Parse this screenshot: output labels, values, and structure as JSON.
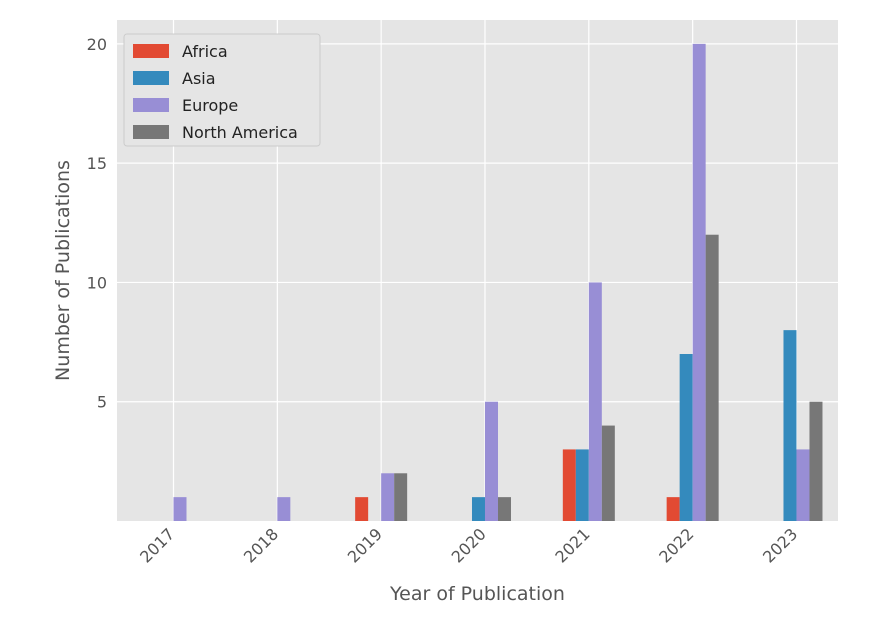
{
  "chart_data": {
    "type": "bar",
    "xlabel": "Year of Publication",
    "ylabel": "Number of Publications",
    "categories": [
      "2017",
      "2018",
      "2019",
      "2020",
      "2021",
      "2022",
      "2023"
    ],
    "yticks": [
      5,
      10,
      15,
      20
    ],
    "ylim": [
      0,
      21.0
    ],
    "grid": true,
    "legend_position": "top-left",
    "series": [
      {
        "name": "Africa",
        "color": "#E24A33",
        "values": [
          0,
          0,
          1,
          0,
          3,
          1,
          0
        ]
      },
      {
        "name": "Asia",
        "color": "#348ABD",
        "values": [
          0,
          0,
          0,
          1,
          3,
          7,
          8
        ]
      },
      {
        "name": "Europe",
        "color": "#988ED5",
        "values": [
          1,
          1,
          2,
          5,
          10,
          20,
          3
        ]
      },
      {
        "name": "North America",
        "color": "#777777",
        "values": [
          0,
          0,
          2,
          1,
          4,
          12,
          5
        ]
      }
    ]
  }
}
